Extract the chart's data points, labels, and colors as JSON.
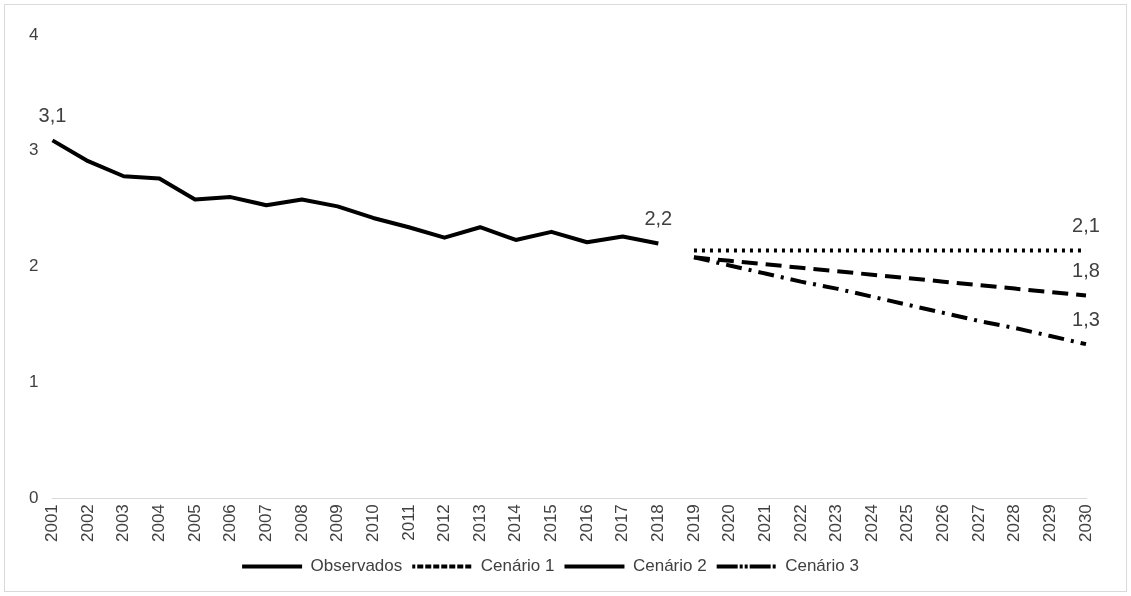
{
  "chart_data": {
    "type": "line",
    "categories": [
      "2001",
      "2002",
      "2003",
      "2004",
      "2005",
      "2006",
      "2007",
      "2008",
      "2009",
      "2010",
      "2011",
      "2012",
      "2013",
      "2014",
      "2015",
      "2016",
      "2017",
      "2018",
      "2019",
      "2020",
      "2021",
      "2022",
      "2023",
      "2024",
      "2025",
      "2026",
      "2027",
      "2028",
      "2029",
      "2030"
    ],
    "series": [
      {
        "name": "Observados",
        "color": "#000000",
        "line_style": "solid",
        "values": [
          3.09,
          2.91,
          2.78,
          2.76,
          2.58,
          2.6,
          2.53,
          2.58,
          2.52,
          2.42,
          2.34,
          2.25,
          2.34,
          2.23,
          2.3,
          2.21,
          2.26,
          2.2,
          null,
          null,
          null,
          null,
          null,
          null,
          null,
          null,
          null,
          null,
          null,
          null
        ],
        "value_labels": [
          "3,1",
          null,
          null,
          null,
          null,
          null,
          null,
          null,
          null,
          null,
          null,
          null,
          null,
          null,
          null,
          null,
          null,
          "2,2",
          null,
          null,
          null,
          null,
          null,
          null,
          null,
          null,
          null,
          null,
          null,
          null
        ]
      },
      {
        "name": "Cenário 1",
        "color": "#000000",
        "line_style": "dotted",
        "values": [
          null,
          null,
          null,
          null,
          null,
          null,
          null,
          null,
          null,
          null,
          null,
          null,
          null,
          null,
          null,
          null,
          null,
          null,
          2.14,
          2.14,
          2.14,
          2.14,
          2.14,
          2.14,
          2.14,
          2.14,
          2.14,
          2.14,
          2.14,
          2.14
        ],
        "value_labels": [
          null,
          null,
          null,
          null,
          null,
          null,
          null,
          null,
          null,
          null,
          null,
          null,
          null,
          null,
          null,
          null,
          null,
          null,
          null,
          null,
          null,
          null,
          null,
          null,
          null,
          null,
          null,
          null,
          null,
          "2,1"
        ]
      },
      {
        "name": "Cenário 2",
        "color": "#000000",
        "line_style": "dashed",
        "values": [
          null,
          null,
          null,
          null,
          null,
          null,
          null,
          null,
          null,
          null,
          null,
          null,
          null,
          null,
          null,
          null,
          null,
          null,
          2.08,
          2.05,
          2.02,
          1.99,
          1.96,
          1.93,
          1.9,
          1.87,
          1.84,
          1.81,
          1.78,
          1.75
        ],
        "value_labels": [
          null,
          null,
          null,
          null,
          null,
          null,
          null,
          null,
          null,
          null,
          null,
          null,
          null,
          null,
          null,
          null,
          null,
          null,
          null,
          null,
          null,
          null,
          null,
          null,
          null,
          null,
          null,
          null,
          null,
          "1,8"
        ]
      },
      {
        "name": "Cenário 3",
        "color": "#000000",
        "line_style": "dashdot",
        "values": [
          null,
          null,
          null,
          null,
          null,
          null,
          null,
          null,
          null,
          null,
          null,
          null,
          null,
          null,
          null,
          null,
          null,
          null,
          2.08,
          2.01,
          1.94,
          1.87,
          1.81,
          1.74,
          1.67,
          1.6,
          1.53,
          1.47,
          1.4,
          1.33
        ],
        "value_labels": [
          null,
          null,
          null,
          null,
          null,
          null,
          null,
          null,
          null,
          null,
          null,
          null,
          null,
          null,
          null,
          null,
          null,
          null,
          null,
          null,
          null,
          null,
          null,
          null,
          null,
          null,
          null,
          null,
          null,
          "1,3"
        ]
      }
    ],
    "ylim": [
      0,
      4
    ],
    "yticks": [
      0,
      1,
      2,
      3,
      4
    ],
    "grid": false,
    "legend": "bottom",
    "marker": "none"
  }
}
